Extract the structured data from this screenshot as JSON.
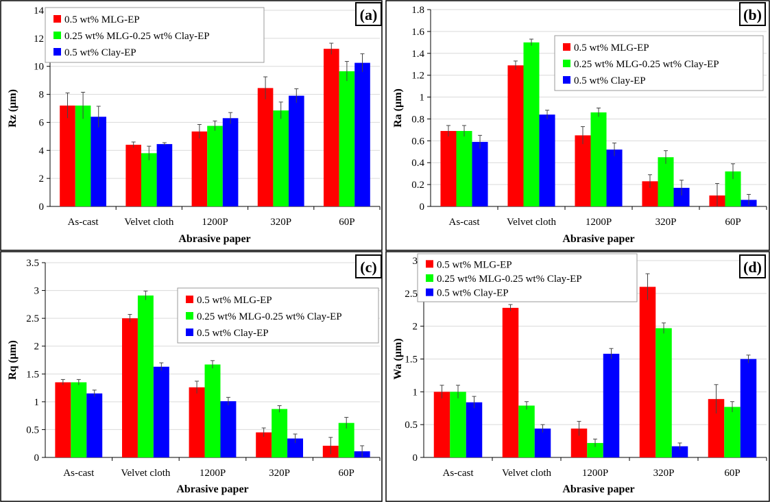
{
  "colors": {
    "series": [
      "#ff0000",
      "#00ff00",
      "#0000ff"
    ],
    "grid": "#d9d9d9",
    "frame": "#000000"
  },
  "chart_data": [
    {
      "type": "bar",
      "panel_label": "(a)",
      "ylabel": "Rz (µm)",
      "xlabel": "Abrasive paper",
      "categories": [
        "As-cast",
        "Velvet cloth",
        "1200P",
        "320P",
        "60P"
      ],
      "ylim": [
        0,
        14
      ],
      "yticks": [
        "0",
        "2",
        "4",
        "6",
        "8",
        "10",
        "12",
        "14"
      ],
      "legend": {
        "position": "top-left"
      },
      "series": [
        {
          "name": "0.5 wt% MLG-EP",
          "values": [
            7.2,
            4.4,
            5.35,
            8.45,
            11.25
          ],
          "errors": [
            0.9,
            0.2,
            0.5,
            0.8,
            0.4
          ]
        },
        {
          "name": "0.25 wt% MLG-0.25 wt% Clay-EP",
          "values": [
            7.2,
            3.8,
            5.75,
            6.85,
            9.65
          ],
          "errors": [
            0.95,
            0.5,
            0.35,
            0.6,
            0.7
          ]
        },
        {
          "name": "0.5 wt% Clay-EP",
          "values": [
            6.4,
            4.45,
            6.3,
            7.9,
            10.25
          ],
          "errors": [
            0.75,
            0.1,
            0.4,
            0.5,
            0.65
          ]
        }
      ]
    },
    {
      "type": "bar",
      "panel_label": "(b)",
      "ylabel": "Ra (µm)",
      "xlabel": "Abrasive paper",
      "categories": [
        "As-cast",
        "Velvet cloth",
        "1200P",
        "320P",
        "60P"
      ],
      "ylim": [
        0,
        1.8
      ],
      "yticks": [
        "0",
        "0.2",
        "0.4",
        "0.6",
        "0.8",
        "1",
        "1.2",
        "1.4",
        "1.6",
        "1.8"
      ],
      "legend": {
        "position": "top-right"
      },
      "series": [
        {
          "name": "0.5 wt% MLG-EP",
          "values": [
            0.69,
            1.29,
            0.65,
            0.23,
            0.1
          ],
          "errors": [
            0.05,
            0.04,
            0.08,
            0.06,
            0.11
          ]
        },
        {
          "name": "0.25 wt% MLG-0.25 wt% Clay-EP",
          "values": [
            0.69,
            1.5,
            0.86,
            0.45,
            0.32
          ],
          "errors": [
            0.05,
            0.03,
            0.04,
            0.06,
            0.07
          ]
        },
        {
          "name": "0.5 wt% Clay-EP",
          "values": [
            0.59,
            0.84,
            0.52,
            0.17,
            0.06
          ],
          "errors": [
            0.06,
            0.04,
            0.06,
            0.07,
            0.05
          ]
        }
      ]
    },
    {
      "type": "bar",
      "panel_label": "(c)",
      "ylabel": "Rq (µm)",
      "xlabel": "Abrasive paper",
      "categories": [
        "As-cast",
        "Velvet cloth",
        "1200P",
        "320P",
        "60P"
      ],
      "ylim": [
        0,
        3.5
      ],
      "yticks": [
        "0",
        "0.5",
        "1",
        "1.5",
        "2",
        "2.5",
        "3",
        "3.5"
      ],
      "legend": {
        "position": "top-right"
      },
      "series": [
        {
          "name": "0.5 wt% MLG-EP",
          "values": [
            1.35,
            2.5,
            1.26,
            0.45,
            0.21
          ],
          "errors": [
            0.05,
            0.07,
            0.11,
            0.08,
            0.15
          ]
        },
        {
          "name": "0.25 wt% MLG-0.25 wt% Clay-EP",
          "values": [
            1.35,
            2.91,
            1.67,
            0.87,
            0.62
          ],
          "errors": [
            0.05,
            0.08,
            0.07,
            0.06,
            0.1
          ]
        },
        {
          "name": "0.5 wt% Clay-EP",
          "values": [
            1.15,
            1.63,
            1.01,
            0.34,
            0.11
          ],
          "errors": [
            0.06,
            0.07,
            0.07,
            0.08,
            0.1
          ]
        }
      ]
    },
    {
      "type": "bar",
      "panel_label": "(d)",
      "ylabel": "Wa (µm)",
      "xlabel": "Abrasive paper",
      "categories": [
        "As-cast",
        "Velvet cloth",
        "1200P",
        "320P",
        "60P"
      ],
      "ylim": [
        0,
        3
      ],
      "yticks": [
        "0",
        "0.5",
        "1",
        "1.5",
        "2",
        "2.5",
        "3"
      ],
      "legend": {
        "position": "top-left"
      },
      "series": [
        {
          "name": "0.5 wt% MLG-EP",
          "values": [
            1.0,
            2.28,
            0.44,
            2.6,
            0.89
          ],
          "errors": [
            0.1,
            0.05,
            0.11,
            0.2,
            0.22
          ]
        },
        {
          "name": "0.25 wt% MLG-0.25 wt% Clay-EP",
          "values": [
            1.0,
            0.79,
            0.22,
            1.97,
            0.77
          ],
          "errors": [
            0.1,
            0.06,
            0.06,
            0.08,
            0.08
          ]
        },
        {
          "name": "0.5 wt% Clay-EP",
          "values": [
            0.84,
            0.44,
            1.58,
            0.17,
            1.5
          ],
          "errors": [
            0.09,
            0.06,
            0.08,
            0.05,
            0.06
          ]
        }
      ]
    }
  ]
}
